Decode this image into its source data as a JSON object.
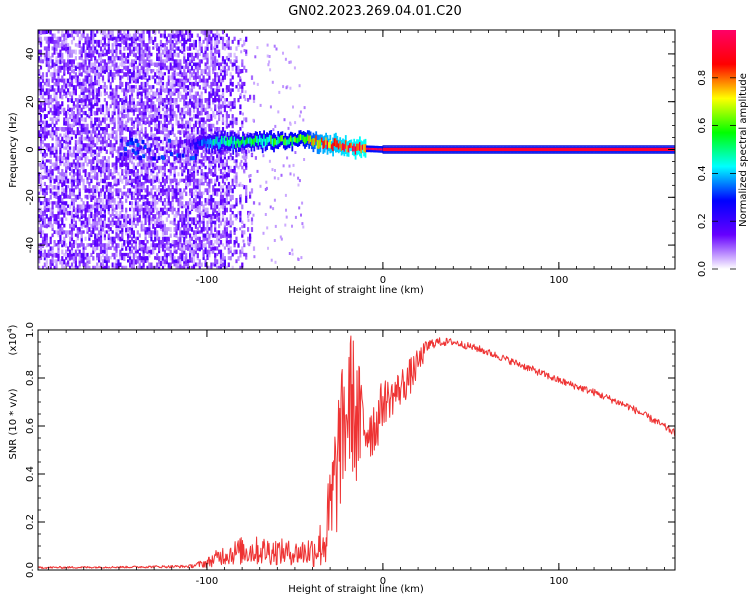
{
  "title": "GN02.2023.269.04.01.C20",
  "chart_data": [
    {
      "type": "heatmap",
      "name": "spectrogram",
      "xlabel": "Height of straight line (km)",
      "ylabel": "Frequency (Hz)",
      "xlim": [
        -196,
        166
      ],
      "ylim": [
        -50,
        50
      ],
      "xticks": [
        -100,
        0,
        100
      ],
      "yticks": [
        -40,
        -20,
        0,
        20,
        40
      ],
      "xtick_labels": [
        "-100",
        "0",
        "100"
      ],
      "ytick_labels": [
        "-40",
        "-20",
        "0",
        "20",
        "40"
      ],
      "noise_region_x": [
        -196,
        -95
      ],
      "noise_edge_x": [
        -95,
        -80
      ],
      "signal_ridge": [
        {
          "x": -112,
          "f": 2,
          "amp": 0.15
        },
        {
          "x": -100,
          "f": 2.5,
          "amp": 0.45
        },
        {
          "x": -85,
          "f": 3,
          "amp": 0.5
        },
        {
          "x": -70,
          "f": 3.5,
          "amp": 0.55
        },
        {
          "x": -55,
          "f": 4,
          "amp": 0.6
        },
        {
          "x": -45,
          "f": 4.2,
          "amp": 0.65
        },
        {
          "x": -35,
          "f": 3,
          "amp": 0.85
        },
        {
          "x": -25,
          "f": 1.5,
          "amp": 0.9
        },
        {
          "x": -15,
          "f": 0.5,
          "amp": 0.95
        },
        {
          "x": 0,
          "f": 0,
          "amp": 1.0
        },
        {
          "x": 80,
          "f": 0,
          "amp": 1.0
        },
        {
          "x": 166,
          "f": 0,
          "amp": 1.0
        }
      ],
      "colorbar": {
        "label": "Normalized spectral amplitude",
        "range": [
          0,
          1
        ],
        "ticks": [
          0.0,
          0.2,
          0.4,
          0.6,
          0.8
        ],
        "tick_labels": [
          "0.0",
          "0.2",
          "0.4",
          "0.6",
          "0.8"
        ],
        "colors": [
          "#ffffff",
          "#6600ff",
          "#0000ff",
          "#00ffff",
          "#00ff00",
          "#ffff00",
          "#ff0000",
          "#ff0066"
        ]
      }
    },
    {
      "type": "line",
      "name": "snr",
      "xlabel": "Height of straight line (km)",
      "ylabel": "SNR (10 * v/v)",
      "y_scale_label": "(x10",
      "y_scale_exponent": "4",
      "y_scale_close": ")",
      "xlim": [
        -196,
        166
      ],
      "ylim": [
        0,
        1.0
      ],
      "xticks": [
        -100,
        0,
        100
      ],
      "yticks": [
        0.0,
        0.2,
        0.4,
        0.6,
        0.8,
        1.0
      ],
      "xtick_labels": [
        "-100",
        "0",
        "100"
      ],
      "ytick_labels": [
        "0.0",
        "0.2",
        "0.4",
        "0.6",
        "0.8",
        "1.0"
      ],
      "color": "#ee3333",
      "series": [
        {
          "name": "SNR envelope",
          "x": [
            -196,
            -150,
            -110,
            -100,
            -92,
            -80,
            -65,
            -50,
            -40,
            -33,
            -28,
            -25,
            -22,
            -18,
            -15,
            -12,
            -8,
            -4,
            0,
            5,
            10,
            15,
            20,
            25,
            30,
            40,
            55,
            80,
            100,
            120,
            140,
            155,
            166
          ],
          "y": [
            0.01,
            0.012,
            0.015,
            0.03,
            0.06,
            0.08,
            0.08,
            0.07,
            0.08,
            0.12,
            0.3,
            0.5,
            0.6,
            0.72,
            0.62,
            0.6,
            0.6,
            0.6,
            0.7,
            0.72,
            0.76,
            0.8,
            0.86,
            0.93,
            0.95,
            0.95,
            0.92,
            0.85,
            0.79,
            0.74,
            0.68,
            0.62,
            0.57
          ],
          "noise": [
            0.004,
            0.004,
            0.006,
            0.02,
            0.04,
            0.06,
            0.06,
            0.05,
            0.07,
            0.12,
            0.3,
            0.28,
            0.28,
            0.3,
            0.3,
            0.22,
            0.15,
            0.12,
            0.1,
            0.08,
            0.08,
            0.08,
            0.06,
            0.03,
            0.02,
            0.015,
            0.015,
            0.015,
            0.015,
            0.015,
            0.015,
            0.015,
            0.015
          ]
        }
      ]
    }
  ]
}
